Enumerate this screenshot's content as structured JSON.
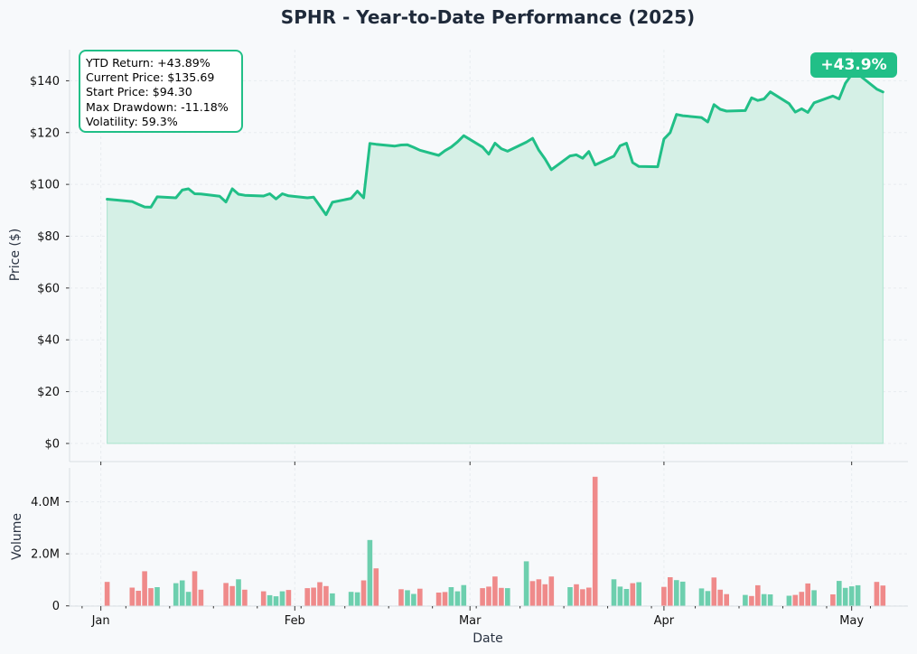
{
  "chart_data": [
    {
      "type": "area",
      "title": "SPHR - Year-to-Date Performance (2025)",
      "ylabel": "Price ($)",
      "ylim": [
        -7,
        152
      ],
      "yticks": [
        0,
        20,
        40,
        60,
        80,
        100,
        120,
        140
      ],
      "ytick_labels": [
        "$0",
        "$20",
        "$40",
        "$60",
        "$80",
        "$100",
        "$120",
        "$140"
      ],
      "grid": true,
      "line_color": "#21bf87",
      "fill_color": "#d5f0e6",
      "stats": [
        "YTD Return: +43.89%",
        "Current Price: $135.69",
        "Start Price: $94.30",
        "Max Drawdown: -11.18%",
        "Volatility: 59.3%"
      ],
      "badge": "+43.9%",
      "series": [
        {
          "dates": [
            "2025-01-02",
            "2025-01-06",
            "2025-01-07",
            "2025-01-08",
            "2025-01-09",
            "2025-01-10",
            "2025-01-13",
            "2025-01-14",
            "2025-01-15",
            "2025-01-16",
            "2025-01-17",
            "2025-01-20",
            "2025-01-21",
            "2025-01-22",
            "2025-01-23",
            "2025-01-24",
            "2025-01-27",
            "2025-01-28",
            "2025-01-29",
            "2025-01-30",
            "2025-01-31",
            "2025-02-03",
            "2025-02-04",
            "2025-02-05",
            "2025-02-06",
            "2025-02-07",
            "2025-02-10",
            "2025-02-11",
            "2025-02-12",
            "2025-02-13",
            "2025-02-14",
            "2025-02-17",
            "2025-02-18",
            "2025-02-19",
            "2025-02-20",
            "2025-02-21",
            "2025-02-24",
            "2025-02-25",
            "2025-02-26",
            "2025-02-27",
            "2025-02-28",
            "2025-03-03",
            "2025-03-04",
            "2025-03-05",
            "2025-03-06",
            "2025-03-07",
            "2025-03-10",
            "2025-03-11",
            "2025-03-12",
            "2025-03-13",
            "2025-03-14",
            "2025-03-17",
            "2025-03-18",
            "2025-03-19",
            "2025-03-20",
            "2025-03-21",
            "2025-03-24",
            "2025-03-25",
            "2025-03-26",
            "2025-03-27",
            "2025-03-28",
            "2025-03-31",
            "2025-04-01",
            "2025-04-02",
            "2025-04-03",
            "2025-04-04",
            "2025-04-07",
            "2025-04-08",
            "2025-04-09",
            "2025-04-10",
            "2025-04-11",
            "2025-04-14",
            "2025-04-15",
            "2025-04-16",
            "2025-04-17",
            "2025-04-18",
            "2025-04-21",
            "2025-04-22",
            "2025-04-23",
            "2025-04-24",
            "2025-04-25",
            "2025-04-28",
            "2025-04-29",
            "2025-04-30",
            "2025-05-01",
            "2025-05-02",
            "2025-05-05",
            "2025-05-06"
          ],
          "values": [
            94.3,
            93.4,
            92.3,
            91.3,
            91.2,
            95.2,
            94.8,
            97.8,
            98.3,
            96.4,
            96.3,
            95.4,
            93.2,
            98.3,
            96.2,
            95.8,
            95.5,
            96.4,
            94.4,
            96.4,
            95.6,
            94.8,
            95.1,
            91.7,
            88.3,
            93.1,
            94.6,
            97.4,
            94.8,
            115.8,
            115.5,
            114.8,
            115.2,
            115.3,
            114.3,
            113.2,
            111.2,
            113.0,
            114.4,
            116.4,
            118.8,
            114.4,
            111.7,
            115.9,
            113.8,
            112.8,
            116.3,
            117.8,
            113.2,
            109.8,
            105.7,
            111.0,
            111.4,
            110.1,
            112.7,
            107.5,
            110.9,
            114.9,
            115.9,
            108.4,
            106.9,
            106.8,
            117.5,
            120.0,
            127.0,
            126.5,
            125.8,
            124.1,
            130.8,
            129.0,
            128.3,
            128.5,
            133.4,
            132.4,
            133.0,
            135.7,
            131.2,
            127.9,
            129.2,
            127.8,
            131.5,
            134.1,
            133.0,
            139.0,
            142.4,
            142.6,
            136.8,
            135.69
          ]
        }
      ]
    },
    {
      "type": "bar",
      "xlabel": "Date",
      "ylabel": "Volume",
      "ylim": [
        -10000,
        5300000
      ],
      "yticks": [
        0,
        2000000,
        4000000
      ],
      "ytick_labels": [
        "0",
        "2.0M",
        "4.0M"
      ],
      "xticks": [
        "2025-01-01",
        "2025-02-01",
        "2025-03-01",
        "2025-04-01",
        "2025-05-01"
      ],
      "xtick_labels": [
        "Jan",
        "Feb",
        "Mar",
        "Apr",
        "May"
      ],
      "up_color": "#6dcfae",
      "down_color": "#ef8a8a",
      "grid": true,
      "series": [
        {
          "values": [
            920000,
            700000,
            580000,
            1330000,
            680000,
            720000,
            870000,
            980000,
            540000,
            1330000,
            620000,
            880000,
            760000,
            1020000,
            620000,
            560000,
            410000,
            370000,
            560000,
            610000,
            680000,
            700000,
            910000,
            760000,
            480000,
            540000,
            520000,
            980000,
            2530000,
            1440000,
            640000,
            600000,
            460000,
            660000,
            510000,
            530000,
            720000,
            560000,
            800000,
            680000,
            740000,
            1130000,
            690000,
            680000,
            1710000,
            950000,
            1020000,
            830000,
            1130000,
            720000,
            830000,
            640000,
            700000,
            4960000,
            1020000,
            740000,
            650000,
            870000,
            910000,
            730000,
            1100000,
            990000,
            930000,
            670000,
            570000,
            1090000,
            620000,
            450000,
            420000,
            380000,
            790000,
            450000,
            440000,
            390000,
            420000,
            540000,
            860000,
            600000,
            440000,
            960000,
            690000,
            750000,
            790000,
            920000,
            780000
          ],
          "direction": [
            "down",
            "down",
            "down",
            "down",
            "down",
            "up",
            "up",
            "up",
            "up",
            "down",
            "down",
            "down",
            "down",
            "up",
            "down",
            "down",
            "up",
            "up",
            "up",
            "down",
            "down",
            "down",
            "down",
            "down",
            "up",
            "up",
            "up",
            "down",
            "up",
            "down",
            "down",
            "up",
            "up",
            "down",
            "down",
            "down",
            "up",
            "up",
            "up",
            "down",
            "down",
            "down",
            "down",
            "up",
            "up",
            "down",
            "down",
            "down",
            "down",
            "up",
            "down",
            "down",
            "down",
            "down",
            "up",
            "up",
            "up",
            "down",
            "up",
            "down",
            "down",
            "up",
            "up",
            "up",
            "up",
            "down",
            "down",
            "down",
            "up",
            "down",
            "down",
            "up",
            "up",
            "up",
            "down",
            "down",
            "down",
            "up",
            "down",
            "up",
            "up",
            "up",
            "up",
            "down",
            "down"
          ],
          "dates": [
            "2025-01-02",
            "2025-01-06",
            "2025-01-07",
            "2025-01-08",
            "2025-01-09",
            "2025-01-10",
            "2025-01-13",
            "2025-01-14",
            "2025-01-15",
            "2025-01-16",
            "2025-01-17",
            "2025-01-21",
            "2025-01-22",
            "2025-01-23",
            "2025-01-24",
            "2025-01-27",
            "2025-01-28",
            "2025-01-29",
            "2025-01-30",
            "2025-01-31",
            "2025-02-03",
            "2025-02-04",
            "2025-02-05",
            "2025-02-06",
            "2025-02-07",
            "2025-02-10",
            "2025-02-11",
            "2025-02-12",
            "2025-02-13",
            "2025-02-14",
            "2025-02-18",
            "2025-02-19",
            "2025-02-20",
            "2025-02-21",
            "2025-02-24",
            "2025-02-25",
            "2025-02-26",
            "2025-02-27",
            "2025-02-28",
            "2025-03-03",
            "2025-03-04",
            "2025-03-05",
            "2025-03-06",
            "2025-03-07",
            "2025-03-10",
            "2025-03-11",
            "2025-03-12",
            "2025-03-13",
            "2025-03-14",
            "2025-03-17",
            "2025-03-18",
            "2025-03-19",
            "2025-03-20",
            "2025-03-21",
            "2025-03-24",
            "2025-03-25",
            "2025-03-26",
            "2025-03-27",
            "2025-03-28",
            "2025-04-01",
            "2025-04-02",
            "2025-04-03",
            "2025-04-04",
            "2025-04-07",
            "2025-04-08",
            "2025-04-09",
            "2025-04-10",
            "2025-04-11",
            "2025-04-14",
            "2025-04-15",
            "2025-04-16",
            "2025-04-17",
            "2025-04-18",
            "2025-04-21",
            "2025-04-22",
            "2025-04-23",
            "2025-04-24",
            "2025-04-25",
            "2025-04-28",
            "2025-04-29",
            "2025-04-30",
            "2025-05-01",
            "2025-05-02",
            "2025-05-05",
            "2025-05-06"
          ]
        }
      ]
    }
  ]
}
